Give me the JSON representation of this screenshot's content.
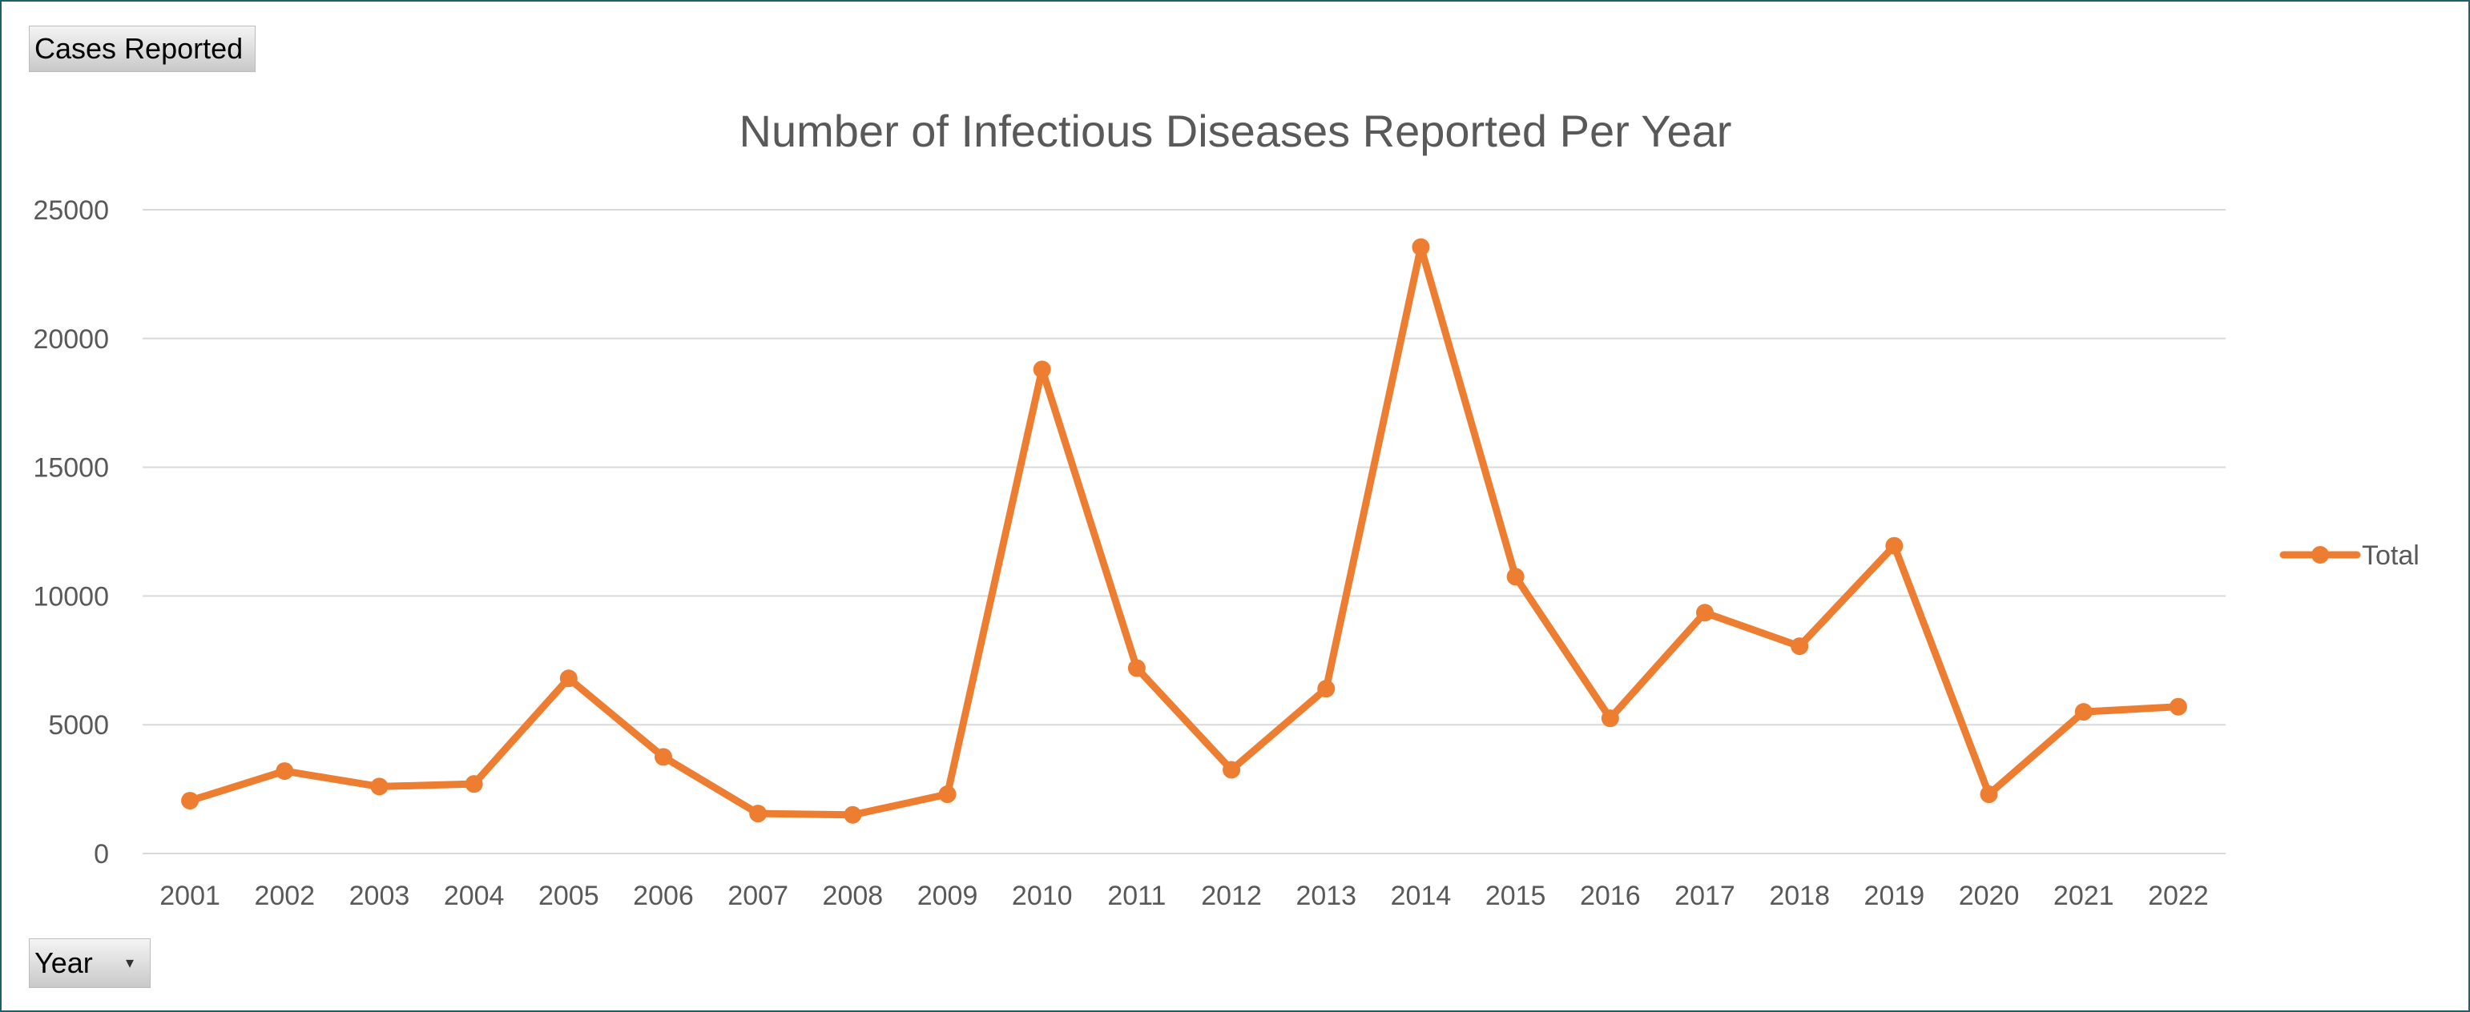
{
  "filter_button": {
    "label": "Cases Reported"
  },
  "axis_button": {
    "label": "Year",
    "dropdown_icon": "dropdown-arrow-icon"
  },
  "colors": {
    "series": "#ED7D31",
    "grid": "#D9D9D9",
    "text": "#595959",
    "border": "#1F5F6B"
  },
  "chart_data": {
    "type": "line",
    "title": "Number of Infectious Diseases Reported Per Year",
    "xlabel": "",
    "ylabel": "",
    "categories": [
      "2001",
      "2002",
      "2003",
      "2004",
      "2005",
      "2006",
      "2007",
      "2008",
      "2009",
      "2010",
      "2011",
      "2012",
      "2013",
      "2014",
      "2015",
      "2016",
      "2017",
      "2018",
      "2019",
      "2020",
      "2021",
      "2022"
    ],
    "series": [
      {
        "name": "Total",
        "values": [
          2050,
          3200,
          2600,
          2700,
          6800,
          3750,
          1550,
          1500,
          2300,
          18800,
          7200,
          3250,
          6400,
          23550,
          10750,
          5250,
          9350,
          8050,
          11950,
          2300,
          5500,
          5700
        ]
      }
    ],
    "ylim": [
      0,
      25000
    ],
    "yticks": [
      0,
      5000,
      10000,
      15000,
      20000,
      25000
    ],
    "grid": true,
    "legend": "right",
    "markers": true
  }
}
